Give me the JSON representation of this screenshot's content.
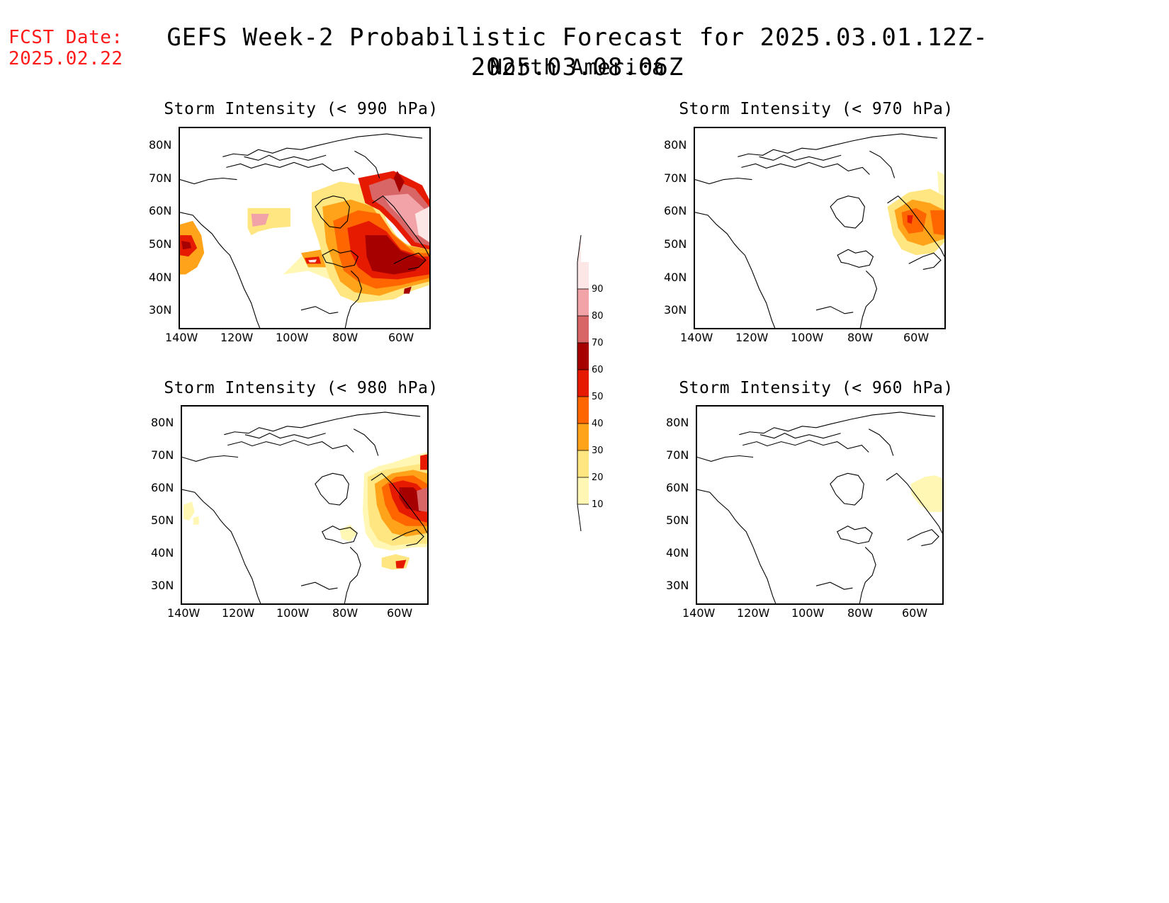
{
  "header": {
    "fcst_label": "FCST Date:",
    "fcst_date": "2025.02.22",
    "title": "GEFS Week-2 Probabilistic Forecast for 2025.03.01.12Z-2025.03.08.06Z",
    "subtitle": "North America"
  },
  "panels": [
    {
      "title": "Storm Intensity (< 990 hPa)",
      "threshold": "990 hPa"
    },
    {
      "title": "Storm Intensity (< 970 hPa)",
      "threshold": "970 hPa"
    },
    {
      "title": "Storm Intensity (< 980 hPa)",
      "threshold": "980 hPa"
    },
    {
      "title": "Storm Intensity (< 960 hPa)",
      "threshold": "960 hPa"
    }
  ],
  "axes": {
    "lat_labels": [
      "80N",
      "70N",
      "60N",
      "50N",
      "40N",
      "30N"
    ],
    "lon_labels": [
      "140W",
      "120W",
      "100W",
      "80W",
      "60W"
    ],
    "lat_range": [
      25,
      85
    ],
    "lon_range": [
      -140,
      -50
    ]
  },
  "colorbar": {
    "levels": [
      "10",
      "20",
      "30",
      "40",
      "50",
      "60",
      "70",
      "80",
      "90"
    ],
    "colors": [
      "#fff7b3",
      "#ffe680",
      "#ffa31a",
      "#ff6600",
      "#e61a00",
      "#a60000",
      "#d96666",
      "#f2a3a8",
      "#fde6e6"
    ]
  }
}
